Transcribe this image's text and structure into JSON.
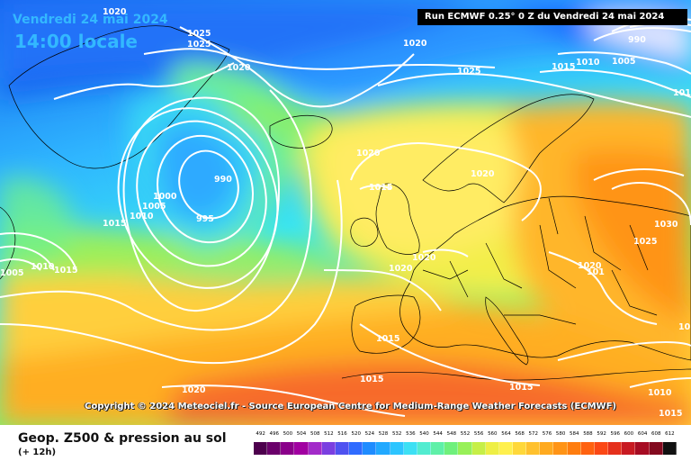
{
  "header": {
    "date_text": "Vendredi 24 mai 2024",
    "time_text": "14:00 locale",
    "run_info": "Run ECMWF 0.25° 0 Z du Vendredi 24 mai 2024"
  },
  "copyright": "Copyright © 2024 Meteociel.fr - Source European Centre for Medium-Range Weather Forecasts (ECMWF)",
  "legend": {
    "title": "Geop. Z500 & pression au sol",
    "subtitle": "(+ 12h)",
    "scale_values": [
      "492",
      "496",
      "500",
      "504",
      "508",
      "512",
      "516",
      "520",
      "524",
      "528",
      "532",
      "536",
      "540",
      "544",
      "548",
      "552",
      "556",
      "560",
      "564",
      "568",
      "572",
      "576",
      "580",
      "584",
      "588",
      "592",
      "596",
      "600",
      "604",
      "608",
      "612"
    ],
    "scale_colors": [
      "#4d004d",
      "#6b006b",
      "#8a008a",
      "#a100a1",
      "#a32bc9",
      "#7a3fe0",
      "#4f52f0",
      "#2f6bff",
      "#1f8cff",
      "#22a9ff",
      "#2dc5ff",
      "#3de0f4",
      "#52ecd0",
      "#5ff0a8",
      "#6ff07c",
      "#98f058",
      "#c6ef47",
      "#eeef45",
      "#fff04d",
      "#ffd83a",
      "#ffc12e",
      "#ffaa1f",
      "#ff9416",
      "#ff7d0f",
      "#ff6210",
      "#fb4815",
      "#e5301c",
      "#c81a22",
      "#a60c23",
      "#830a1f",
      "#111111"
    ]
  },
  "map": {
    "colors": {
      "deep_blue": "#1565ef",
      "blue": "#2f8cff",
      "light_blue": "#2fc4ff",
      "cyan": "#38e4f2",
      "teal": "#52ecd0",
      "green": "#6ff08c",
      "lime": "#b4f04f",
      "yellow": "#f2f04a",
      "light_yellow": "#ffe86a",
      "gold": "#ffd03a",
      "orange": "#ffac22",
      "dark_orange": "#ff8a16",
      "red_orange": "#f7602a",
      "coast": "#000000",
      "isobar": "#ffffff"
    },
    "isobar_labels": [
      "1020",
      "1025",
      "1025",
      "1020",
      "1020",
      "1025",
      "990",
      "1005",
      "1010",
      "1015",
      "1020",
      "1015",
      "990",
      "1000",
      "1005",
      "1010",
      "995",
      "1015",
      "1020",
      "1030",
      "1025",
      "1020",
      "1020",
      "1020",
      "1015",
      "1015",
      "1015",
      "1005",
      "1010",
      "1015",
      "1020",
      "1010",
      "1015",
      "1010",
      "101",
      "1010"
    ]
  }
}
